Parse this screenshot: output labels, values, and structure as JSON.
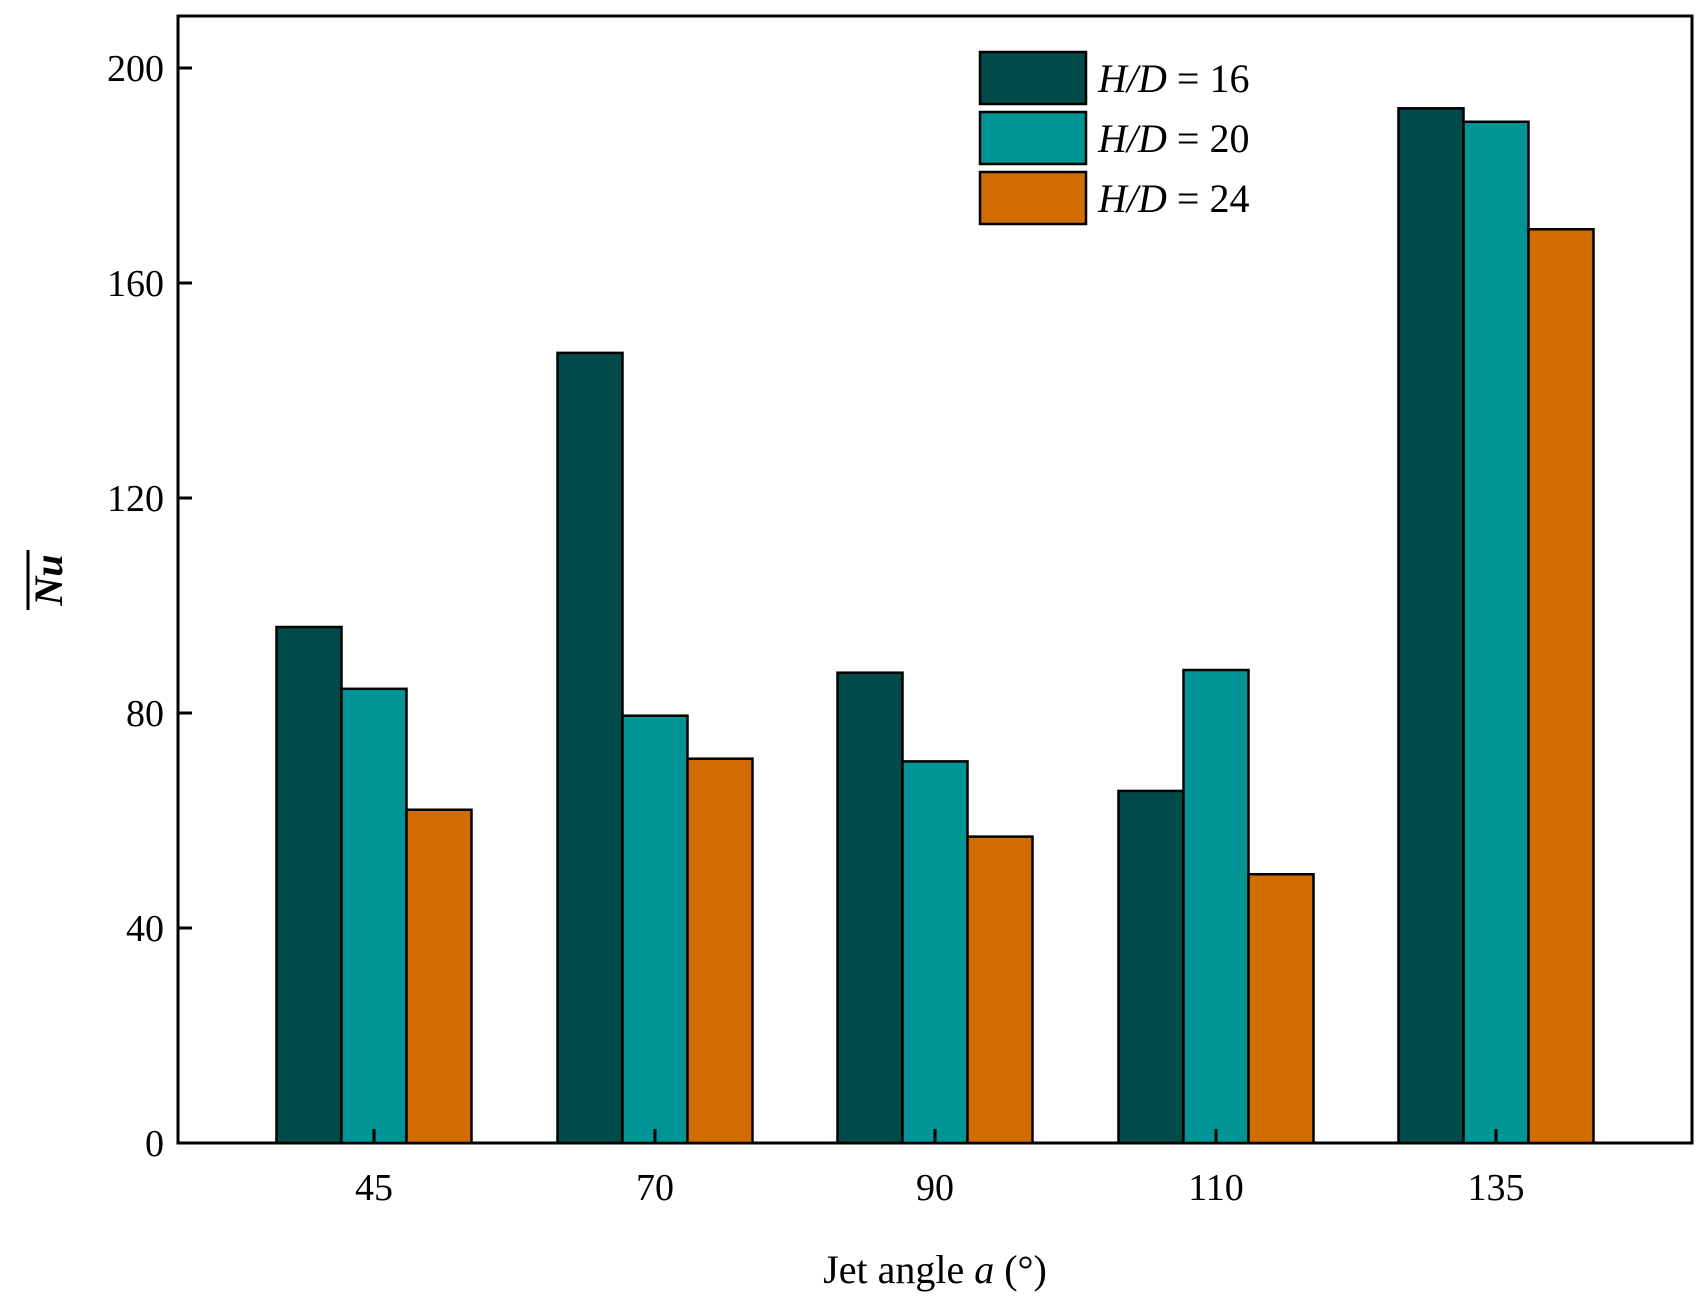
{
  "chart_data": {
    "type": "bar",
    "title": "",
    "xlabel": {
      "main": "Jet angle ",
      "var": "a",
      "unit": " (°)"
    },
    "ylabel": "Nu",
    "ylabel_overbar": true,
    "categories": [
      "45",
      "70",
      "90",
      "110",
      "135"
    ],
    "ylim": [
      0,
      210
    ],
    "yticks": [
      0,
      40,
      80,
      120,
      160,
      200
    ],
    "grid": false,
    "legend_position": "top-right",
    "series": [
      {
        "name": "H/D = 16",
        "label_var": "H/D",
        "label_rest": " = 16",
        "color": "#004a4a",
        "values": [
          96,
          147,
          87.5,
          65.5,
          192.5
        ]
      },
      {
        "name": "H/D = 20",
        "label_var": "H/D",
        "label_rest": " = 20",
        "color": "#009494",
        "values": [
          84.5,
          79.5,
          71,
          88,
          190
        ]
      },
      {
        "name": "H/D = 24",
        "label_var": "H/D",
        "label_rest": " = 24",
        "color": "#d16d00",
        "values": [
          62,
          71.5,
          57,
          50,
          170
        ]
      }
    ]
  }
}
